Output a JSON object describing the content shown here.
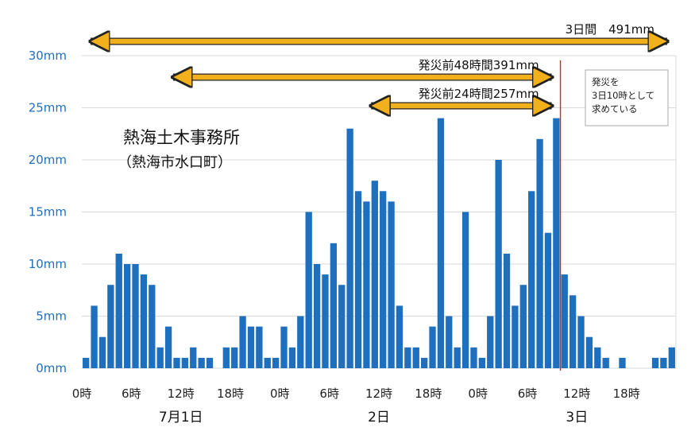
{
  "chart_data": {
    "type": "bar",
    "unit_note": "hourly rainfall (mm)",
    "ylim": [
      0,
      30
    ],
    "y_ticks": [
      "0mm",
      "5mm",
      "10mm",
      "15mm",
      "20mm",
      "25mm",
      "30mm"
    ],
    "x_ticks": [
      "0時",
      "6時",
      "12時",
      "18時",
      "0時",
      "6時",
      "12時",
      "18時",
      "0時",
      "6時",
      "12時",
      "18時"
    ],
    "x_tick_hours": [
      0,
      6,
      12,
      18,
      24,
      30,
      36,
      42,
      48,
      54,
      60,
      66
    ],
    "day_labels": [
      {
        "text": "7月1日",
        "hour": 12
      },
      {
        "text": "2日",
        "hour": 36
      },
      {
        "text": "3日",
        "hour": 60
      }
    ],
    "grid": true,
    "color": "#1f6fbf",
    "values": [
      1,
      6,
      3,
      8,
      11,
      10,
      10,
      9,
      8,
      2,
      4,
      1,
      1,
      2,
      1,
      1,
      0,
      2,
      2,
      5,
      4,
      4,
      1,
      1,
      4,
      2,
      5,
      15,
      10,
      9,
      12,
      8,
      23,
      17,
      16,
      18,
      17,
      16,
      6,
      2,
      2,
      1,
      4,
      24,
      5,
      2,
      15,
      2,
      1,
      5,
      20,
      11,
      6,
      8,
      17,
      22,
      13,
      24,
      9,
      7,
      5,
      3,
      2,
      1,
      0,
      1,
      0,
      0,
      0,
      1,
      1,
      2
    ],
    "marker": {
      "hour": 58,
      "color": "#e02020"
    },
    "arrows": [
      {
        "label": "3日間　491mm",
        "from_hour": 0,
        "to_hour": 72,
        "color": "#f2b11c"
      },
      {
        "label": "発災前48時間391mm",
        "from_hour": 10,
        "to_hour": 58,
        "color": "#f2b11c"
      },
      {
        "label": "発災前24時間257mm",
        "from_hour": 34,
        "to_hour": 58,
        "color": "#f2b11c"
      }
    ],
    "station": {
      "name": "熱海土木事務所",
      "sub": "（熱海市水口町）"
    },
    "note": {
      "lines": [
        "発災を",
        "3日10時として",
        "求めている"
      ]
    }
  }
}
